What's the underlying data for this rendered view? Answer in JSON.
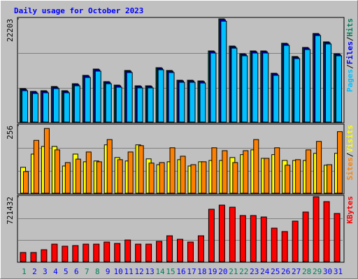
{
  "title": "Daily usage for October 2023",
  "legend_separator": "/",
  "chart_data": [
    {
      "type": "bar",
      "ylim": [
        0,
        22203
      ],
      "yticks": [
        22203
      ],
      "grid": true,
      "series": [
        {
          "name": "Hits",
          "color": "#00805c",
          "values": [
            7200,
            6600,
            6750,
            7650,
            6750,
            8250,
            10050,
            11400,
            8700,
            7950,
            11100,
            7800,
            7800,
            11700,
            11100,
            9000,
            9000,
            8850,
            15300,
            22203,
            16350,
            14700,
            15300,
            15300,
            10500,
            16950,
            14100,
            16050,
            19050,
            17250,
            14700
          ]
        },
        {
          "name": "Files",
          "color": "#0000ff",
          "values": [
            7050,
            6450,
            6600,
            7500,
            6600,
            8100,
            9900,
            11250,
            8550,
            7800,
            10950,
            7650,
            7650,
            11550,
            10950,
            8850,
            8850,
            8700,
            15150,
            22000,
            16200,
            14550,
            15150,
            15150,
            10350,
            16800,
            13950,
            15900,
            18900,
            17100,
            14550
          ]
        },
        {
          "name": "Pages",
          "color": "#00c0ff",
          "values": [
            6750,
            6150,
            6300,
            7200,
            6300,
            7800,
            9600,
            10950,
            8250,
            7500,
            10650,
            7350,
            7350,
            11250,
            10650,
            8550,
            8550,
            8400,
            14850,
            21700,
            15900,
            14250,
            14850,
            14850,
            10050,
            16500,
            13650,
            15600,
            18600,
            16800,
            14250
          ]
        }
      ]
    },
    {
      "type": "bar",
      "ylim": [
        0,
        256
      ],
      "yticks": [
        256
      ],
      "grid": true,
      "series": [
        {
          "name": "Visits",
          "color": "#ffff00",
          "values": [
            98,
            148,
            177,
            177,
            103,
            148,
            119,
            122,
            183,
            135,
            122,
            183,
            130,
            108,
            119,
            127,
            103,
            119,
            124,
            124,
            135,
            146,
            164,
            132,
            146,
            124,
            124,
            124,
            151,
            106,
            151
          ]
        },
        {
          "name": "Sites",
          "color": "#ff8000",
          "values": [
            82,
            200,
            245,
            164,
            116,
            129,
            156,
            119,
            203,
            127,
            156,
            180,
            114,
            116,
            172,
            140,
            108,
            119,
            172,
            161,
            116,
            161,
            203,
            132,
            172,
            106,
            127,
            164,
            196,
            108,
            233
          ]
        }
      ]
    },
    {
      "type": "bar",
      "ylim": [
        0,
        721432
      ],
      "yticks": [
        721432
      ],
      "grid": true,
      "categories": [
        "1",
        "2",
        "3",
        "4",
        "5",
        "6",
        "7",
        "8",
        "9",
        "10",
        "11",
        "12",
        "13",
        "14",
        "15",
        "16",
        "17",
        "18",
        "19",
        "20",
        "21",
        "22",
        "23",
        "24",
        "25",
        "26",
        "27",
        "28",
        "29",
        "30",
        "31"
      ],
      "category_colors": [
        "#00805c",
        "#0000ff",
        "#0000ff",
        "#0000ff",
        "#0000ff",
        "#0000ff",
        "#00805c",
        "#00805c",
        "#0000ff",
        "#0000ff",
        "#0000ff",
        "#0000ff",
        "#0000ff",
        "#00805c",
        "#00805c",
        "#0000ff",
        "#0000ff",
        "#0000ff",
        "#0000ff",
        "#0000ff",
        "#00805c",
        "#00805c",
        "#0000ff",
        "#0000ff",
        "#0000ff",
        "#0000ff",
        "#0000ff",
        "#00805c",
        "#00805c",
        "#0000ff",
        "#0000ff"
      ],
      "series": [
        {
          "name": "KBytes",
          "color": "#ff0000",
          "values": [
            101000,
            101000,
            132000,
            194000,
            171000,
            178000,
            194000,
            194000,
            217000,
            202000,
            240000,
            194000,
            194000,
            225000,
            287000,
            248000,
            217000,
            287000,
            582000,
            628000,
            605000,
            512000,
            512000,
            496000,
            372000,
            334000,
            450000,
            551000,
            721432,
            667000,
            535000
          ]
        }
      ]
    }
  ]
}
